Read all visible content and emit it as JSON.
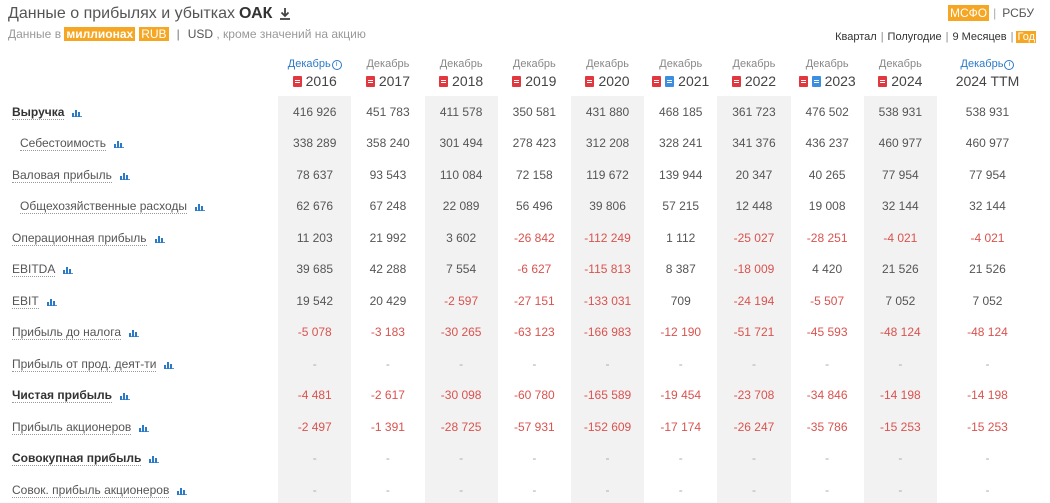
{
  "header": {
    "title": "Данные о прибылях и убытках",
    "ticker": "ОАК",
    "units_prefix": "Данные в",
    "units_scale": "миллионах",
    "currency_rub": "RUB",
    "currency_usd": "USD",
    "units_suffix": ", кроме значений на акцию"
  },
  "standards": [
    "МСФО",
    "РСБУ"
  ],
  "periods": [
    "Квартал",
    "Полугодие",
    "9 Месяцев",
    "Год"
  ],
  "columns": [
    {
      "month": "Декабрь",
      "year": "2016",
      "icons": [
        "pdf"
      ],
      "info": true
    },
    {
      "month": "Декабрь",
      "year": "2017",
      "icons": [
        "pdf"
      ],
      "info": false
    },
    {
      "month": "Декабрь",
      "year": "2018",
      "icons": [
        "pdf"
      ],
      "info": false
    },
    {
      "month": "Декабрь",
      "year": "2019",
      "icons": [
        "pdf"
      ],
      "info": false
    },
    {
      "month": "Декабрь",
      "year": "2020",
      "icons": [
        "pdf"
      ],
      "info": false
    },
    {
      "month": "Декабрь",
      "year": "2021",
      "icons": [
        "pdf",
        "doc"
      ],
      "info": false
    },
    {
      "month": "Декабрь",
      "year": "2022",
      "icons": [
        "pdf"
      ],
      "info": false
    },
    {
      "month": "Декабрь",
      "year": "2023",
      "icons": [
        "pdf",
        "doc"
      ],
      "info": false
    },
    {
      "month": "Декабрь",
      "year": "2024",
      "icons": [
        "pdf"
      ],
      "info": false
    },
    {
      "month": "Декабрь",
      "year": "2024 TTM",
      "icons": [],
      "info": true
    }
  ],
  "rows": [
    {
      "label": "Выручка",
      "bold": true,
      "indent": false,
      "values": [
        "416 926",
        "451 783",
        "411 578",
        "350 581",
        "431 880",
        "468 185",
        "361 723",
        "476 502",
        "538 931",
        "538 931"
      ]
    },
    {
      "label": "Себестоимость",
      "bold": false,
      "indent": true,
      "values": [
        "338 289",
        "358 240",
        "301 494",
        "278 423",
        "312 208",
        "328 241",
        "341 376",
        "436 237",
        "460 977",
        "460 977"
      ]
    },
    {
      "label": "Валовая прибыль",
      "bold": false,
      "indent": false,
      "values": [
        "78 637",
        "93 543",
        "110 084",
        "72 158",
        "119 672",
        "139 944",
        "20 347",
        "40 265",
        "77 954",
        "77 954"
      ]
    },
    {
      "label": "Общехозяйственные расходы",
      "bold": false,
      "indent": true,
      "values": [
        "62 676",
        "67 248",
        "22 089",
        "56 496",
        "39 806",
        "57 215",
        "12 448",
        "19 008",
        "32 144",
        "32 144"
      ]
    },
    {
      "label": "Операционная прибыль",
      "bold": false,
      "indent": false,
      "values": [
        "11 203",
        "21 992",
        "3 602",
        "-26 842",
        "-112 249",
        "1 112",
        "-25 027",
        "-28 251",
        "-4 021",
        "-4 021"
      ]
    },
    {
      "label": "EBITDA",
      "bold": false,
      "indent": false,
      "values": [
        "39 685",
        "42 288",
        "7 554",
        "-6 627",
        "-115 813",
        "8 387",
        "-18 009",
        "4 420",
        "21 526",
        "21 526"
      ]
    },
    {
      "label": "EBIT",
      "bold": false,
      "indent": false,
      "values": [
        "19 542",
        "20 429",
        "-2 597",
        "-27 151",
        "-133 031",
        "709",
        "-24 194",
        "-5 507",
        "7 052",
        "7 052"
      ]
    },
    {
      "label": "Прибыль до налога",
      "bold": false,
      "indent": false,
      "values": [
        "-5 078",
        "-3 183",
        "-30 265",
        "-63 123",
        "-166 983",
        "-12 190",
        "-51 721",
        "-45 593",
        "-48 124",
        "-48 124"
      ]
    },
    {
      "label": "Прибыль от прод. деят-ти",
      "bold": false,
      "indent": false,
      "values": [
        "-",
        "-",
        "-",
        "-",
        "-",
        "-",
        "-",
        "-",
        "-",
        "-"
      ]
    },
    {
      "label": "Чистая прибыль",
      "bold": true,
      "indent": false,
      "values": [
        "-4 481",
        "-2 617",
        "-30 098",
        "-60 780",
        "-165 589",
        "-19 454",
        "-23 708",
        "-34 846",
        "-14 198",
        "-14 198"
      ]
    },
    {
      "label": "Прибыль акционеров",
      "bold": false,
      "indent": false,
      "values": [
        "-2 497",
        "-1 391",
        "-28 725",
        "-57 931",
        "-152 609",
        "-17 174",
        "-26 247",
        "-35 786",
        "-15 253",
        "-15 253"
      ]
    },
    {
      "label": "Совокупная прибыль",
      "bold": true,
      "indent": false,
      "values": [
        "-",
        "-",
        "-",
        "-",
        "-",
        "-",
        "-",
        "-",
        "-",
        "-"
      ]
    },
    {
      "label": "Совок. прибыль акционеров",
      "bold": false,
      "indent": false,
      "values": [
        "-",
        "-",
        "-",
        "-",
        "-",
        "-",
        "-",
        "-",
        "-",
        "-"
      ]
    }
  ]
}
